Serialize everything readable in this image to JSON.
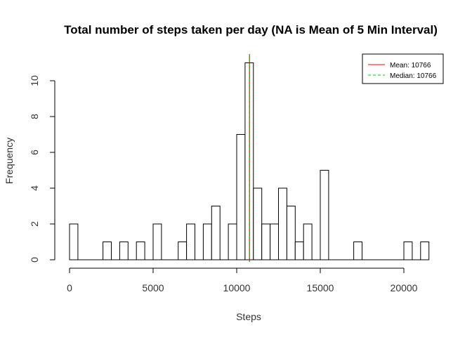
{
  "chart_data": {
    "type": "bar",
    "title": "Total number of steps taken per day (NA is Mean of 5 Min Interval)",
    "xlabel": "Steps",
    "ylabel": "Frequency",
    "xlim": [
      0,
      21500
    ],
    "ylim": [
      0,
      11
    ],
    "bin_width": 500,
    "x_ticks": [
      0,
      5000,
      10000,
      15000,
      20000
    ],
    "y_ticks": [
      0,
      2,
      4,
      6,
      8,
      10
    ],
    "values": [
      2,
      0,
      0,
      0,
      1,
      0,
      1,
      0,
      1,
      0,
      2,
      0,
      0,
      1,
      2,
      0,
      2,
      3,
      0,
      2,
      7,
      11,
      4,
      2,
      2,
      4,
      3,
      1,
      2,
      0,
      5,
      0,
      0,
      0,
      1,
      0,
      0,
      0,
      0,
      0,
      1,
      0,
      1
    ],
    "bar_stroke": "#000000",
    "bar_fill": "#ffffff",
    "mean_line": {
      "value": 10766,
      "color": "#ff0000",
      "label": "Mean: 10766"
    },
    "median_line": {
      "value": 10766,
      "color": "#00cc00",
      "label": "Median: 10766",
      "dashed": true
    },
    "legend_position": "top-right"
  }
}
